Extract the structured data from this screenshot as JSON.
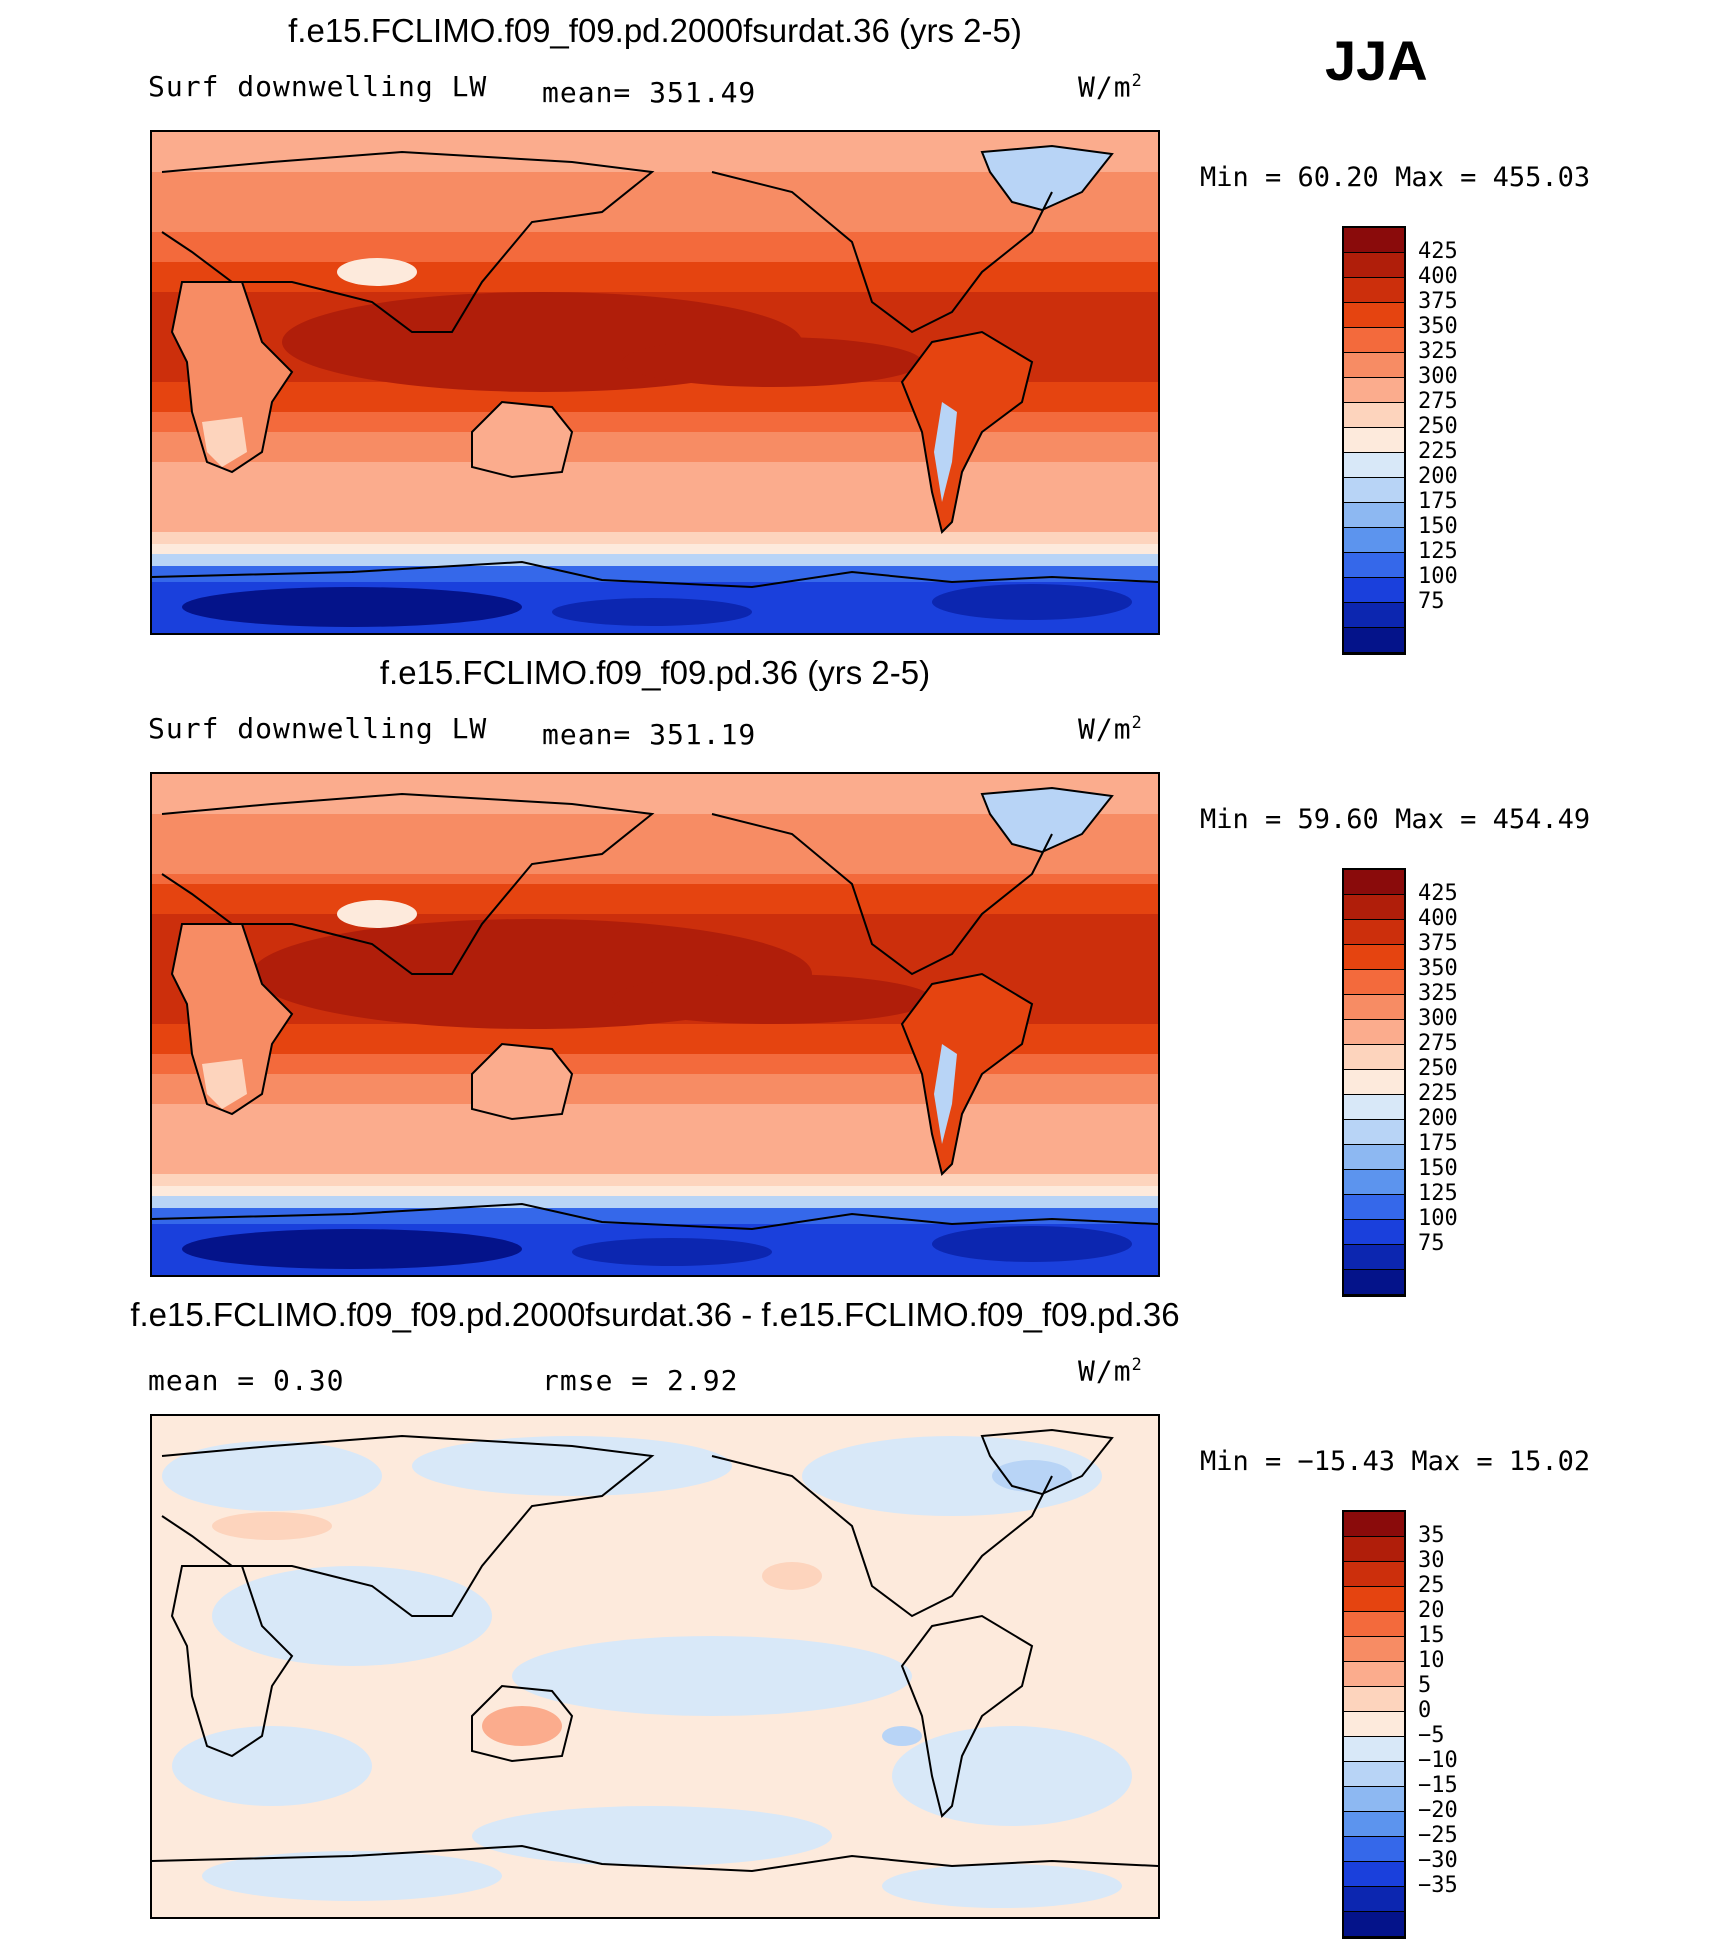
{
  "season": "JJA",
  "panels": [
    {
      "title": "f.e15.FCLIMO.f09_f09.pd.2000fsurdat.36 (yrs 2-5)",
      "variable": "Surf downwelling LW",
      "stat_text": "mean= 351.49",
      "units_base": "W/m",
      "units_exp": "2",
      "minmax": "Min =   60.20 Max = 455.03"
    },
    {
      "title": "f.e15.FCLIMO.f09_f09.pd.36 (yrs 2-5)",
      "variable": "Surf downwelling LW",
      "stat_text": "mean= 351.19",
      "units_base": "W/m",
      "units_exp": "2",
      "minmax": "Min =   59.60 Max = 454.49"
    },
    {
      "title": "f.e15.FCLIMO.f09_f09.pd.2000fsurdat.36 - f.e15.FCLIMO.f09_f09.pd.36",
      "variable": "mean =    0.30",
      "stat_text": "rmse =    2.92",
      "units_base": "W/m",
      "units_exp": "2",
      "minmax": "Min = −15.43 Max =   15.02"
    }
  ],
  "colorbars": {
    "abs": {
      "labels": [
        "425",
        "400",
        "375",
        "350",
        "325",
        "300",
        "275",
        "250",
        "225",
        "200",
        "175",
        "150",
        "125",
        "100",
        "75"
      ],
      "colors": [
        "#8a0b0b",
        "#b01e0a",
        "#cc2f0c",
        "#e54410",
        "#f36a3c",
        "#f78c64",
        "#fbac8d",
        "#fdd4bd",
        "#fdeadc",
        "#d8e8f8",
        "#b8d4f6",
        "#8db8f2",
        "#5c94ee",
        "#3568ea",
        "#1a40dc",
        "#0c26b0",
        "#04138a"
      ]
    },
    "diff": {
      "labels": [
        "35",
        "30",
        "25",
        "20",
        "15",
        "10",
        "5",
        "0",
        "−5",
        "−10",
        "−15",
        "−20",
        "−25",
        "−30",
        "−35"
      ],
      "colors": [
        "#8a0b0b",
        "#b01e0a",
        "#cc2f0c",
        "#e54410",
        "#f36a3c",
        "#f78c64",
        "#fbac8d",
        "#fdd4bd",
        "#fdeadc",
        "#d8e8f8",
        "#b8d4f6",
        "#8db8f2",
        "#5c94ee",
        "#3568ea",
        "#1a40dc",
        "#0c26b0",
        "#04138a"
      ]
    }
  }
}
